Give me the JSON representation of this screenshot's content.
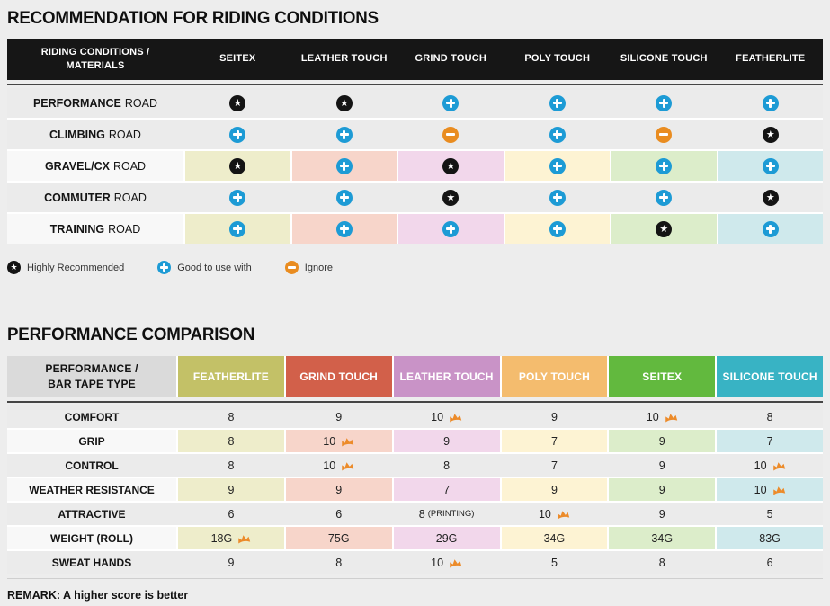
{
  "page_background": "#ededed",
  "section1": {
    "title": "RECOMMENDATION FOR RIDING CONDITIONS",
    "table": {
      "header_line1": "RIDING CONDITIONS /",
      "header_line2": "MATERIALS",
      "header_background": "#161616",
      "columns": [
        "SEITEX",
        "LEATHER TOUCH",
        "GRIND TOUCH",
        "POLY TOUCH",
        "SILICONE TOUCH",
        "FEATHERLITE"
      ],
      "column_tints": [
        "#eeedcb",
        "#f7d5ca",
        "#f2d7eb",
        "#fdf3d3",
        "#dcedca",
        "#cfe9ec"
      ],
      "rows": [
        {
          "label_bold": "PERFORMANCE",
          "label_rest": "ROAD",
          "tinted": false,
          "cells": [
            "star",
            "star",
            "plus",
            "plus",
            "plus",
            "plus"
          ]
        },
        {
          "label_bold": "CLIMBING",
          "label_rest": "ROAD",
          "tinted": false,
          "cells": [
            "plus",
            "plus",
            "minus",
            "plus",
            "minus",
            "star"
          ]
        },
        {
          "label_bold": "GRAVEL/CX",
          "label_rest": "ROAD",
          "tinted": true,
          "cells": [
            "star",
            "plus",
            "star",
            "plus",
            "plus",
            "plus"
          ]
        },
        {
          "label_bold": "COMMUTER",
          "label_rest": "ROAD",
          "tinted": false,
          "cells": [
            "plus",
            "plus",
            "star",
            "plus",
            "plus",
            "star"
          ]
        },
        {
          "label_bold": "TRAINING",
          "label_rest": "ROAD",
          "tinted": true,
          "cells": [
            "plus",
            "plus",
            "plus",
            "plus",
            "star",
            "plus"
          ]
        }
      ]
    }
  },
  "legend": {
    "items": [
      {
        "icon": "star",
        "label": "Highly Recommended"
      },
      {
        "icon": "plus",
        "label": "Good to use with"
      },
      {
        "icon": "minus",
        "label": "Ignore"
      }
    ]
  },
  "section2": {
    "title": "PERFORMANCE COMPARISON",
    "remark": "REMARK: A higher score is better",
    "table": {
      "header_line1": "PERFORMANCE /",
      "header_line2": "BAR TAPE TYPE",
      "columns": [
        {
          "label": "FEATHERLITE",
          "color": "#c3c167",
          "tint": "#eeedcb"
        },
        {
          "label": "GRIND TOUCH",
          "color": "#d2604a",
          "tint": "#f7d5ca"
        },
        {
          "label": "LEATHER TOUCH",
          "color": "#c993c7",
          "tint": "#f2d7eb"
        },
        {
          "label": "POLY TOUCH",
          "color": "#f4bc6e",
          "tint": "#fdf3d3"
        },
        {
          "label": "SEITEX",
          "color": "#62b93e",
          "tint": "#dcedca"
        },
        {
          "label": "SILICONE TOUCH",
          "color": "#38b3c4",
          "tint": "#cfe9ec"
        }
      ],
      "rows": [
        {
          "label": "COMFORT",
          "tinted": false,
          "cells": [
            {
              "value": "8"
            },
            {
              "value": "9"
            },
            {
              "value": "10",
              "crown": true
            },
            {
              "value": "9"
            },
            {
              "value": "10",
              "crown": true
            },
            {
              "value": "8"
            }
          ]
        },
        {
          "label": "GRIP",
          "tinted": true,
          "cells": [
            {
              "value": "8"
            },
            {
              "value": "10",
              "crown": true
            },
            {
              "value": "9"
            },
            {
              "value": "7"
            },
            {
              "value": "9"
            },
            {
              "value": "7"
            }
          ]
        },
        {
          "label": "CONTROL",
          "tinted": false,
          "cells": [
            {
              "value": "8"
            },
            {
              "value": "10",
              "crown": true
            },
            {
              "value": "8"
            },
            {
              "value": "7"
            },
            {
              "value": "9"
            },
            {
              "value": "10",
              "crown": true
            }
          ]
        },
        {
          "label": "WEATHER RESISTANCE",
          "tinted": true,
          "cells": [
            {
              "value": "9"
            },
            {
              "value": "9"
            },
            {
              "value": "7"
            },
            {
              "value": "9"
            },
            {
              "value": "9"
            },
            {
              "value": "10",
              "crown": true
            }
          ]
        },
        {
          "label": "ATTRACTIVE",
          "tinted": false,
          "cells": [
            {
              "value": "6"
            },
            {
              "value": "6"
            },
            {
              "value": "8",
              "note": "(PRINTING)"
            },
            {
              "value": "10",
              "crown": true
            },
            {
              "value": "9"
            },
            {
              "value": "5"
            }
          ]
        },
        {
          "label": "WEIGHT (ROLL)",
          "tinted": true,
          "cells": [
            {
              "value": "18G",
              "crown": true
            },
            {
              "value": "75G"
            },
            {
              "value": "29G"
            },
            {
              "value": "34G"
            },
            {
              "value": "34G"
            },
            {
              "value": "83G"
            }
          ]
        },
        {
          "label": "SWEAT HANDS",
          "tinted": false,
          "cells": [
            {
              "value": "9"
            },
            {
              "value": "8"
            },
            {
              "value": "10",
              "crown": true
            },
            {
              "value": "5"
            },
            {
              "value": "8"
            },
            {
              "value": "6"
            }
          ]
        }
      ]
    }
  },
  "icons": {
    "highly_recommended_color": "#141414",
    "good_to_use_color": "#1d9bd5",
    "ignore_color": "#e98c20",
    "crown_color": "#ec8b2a"
  }
}
